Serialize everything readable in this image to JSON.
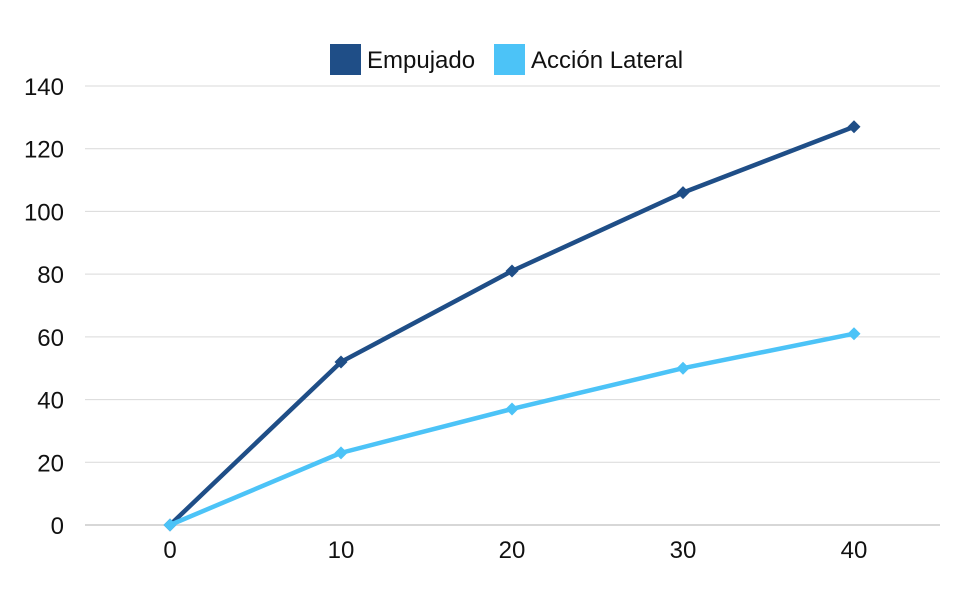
{
  "chart_data": {
    "type": "line",
    "title": "",
    "xlabel": "",
    "ylabel": "",
    "x": [
      0,
      10,
      20,
      30,
      40
    ],
    "xticks": [
      "0",
      "10",
      "20",
      "30",
      "40"
    ],
    "yticks": [
      "0",
      "20",
      "40",
      "60",
      "80",
      "100",
      "120",
      "140"
    ],
    "ylim": [
      0,
      140
    ],
    "grid": true,
    "legend": "top-center",
    "series": [
      {
        "name": "Empujado",
        "color": "#1f4e87",
        "marker": "diamond",
        "values": [
          0,
          52,
          81,
          106,
          127
        ]
      },
      {
        "name": "Acción Lateral",
        "color": "#4cc3f7",
        "marker": "diamond",
        "values": [
          0,
          23,
          37,
          50,
          61
        ]
      }
    ]
  }
}
